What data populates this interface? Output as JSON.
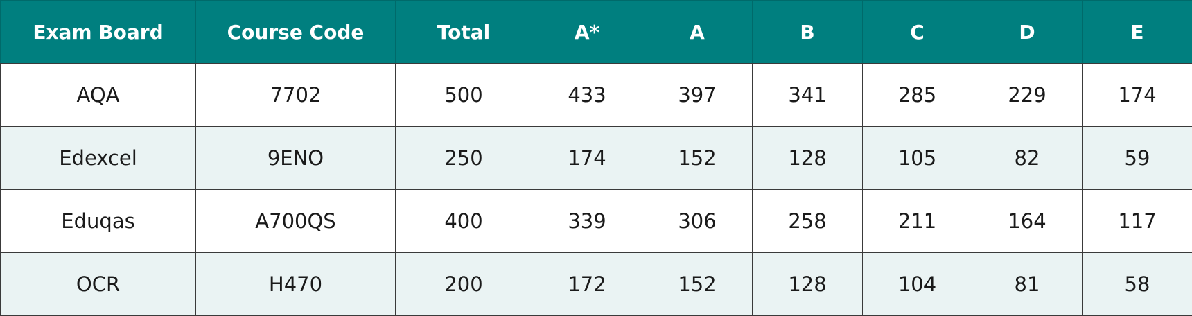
{
  "table": {
    "columns": [
      "Exam Board",
      "Course Code",
      "Total",
      "A*",
      "A",
      "B",
      "C",
      "D",
      "E"
    ],
    "rows": [
      [
        "AQA",
        "7702",
        500,
        433,
        397,
        341,
        285,
        229,
        174
      ],
      [
        "Edexcel",
        "9ENO",
        250,
        174,
        152,
        128,
        105,
        82,
        59
      ],
      [
        "Eduqas",
        "A700QS",
        400,
        339,
        306,
        258,
        211,
        164,
        117
      ],
      [
        "OCR",
        "H470",
        200,
        172,
        152,
        128,
        104,
        81,
        58
      ]
    ]
  }
}
